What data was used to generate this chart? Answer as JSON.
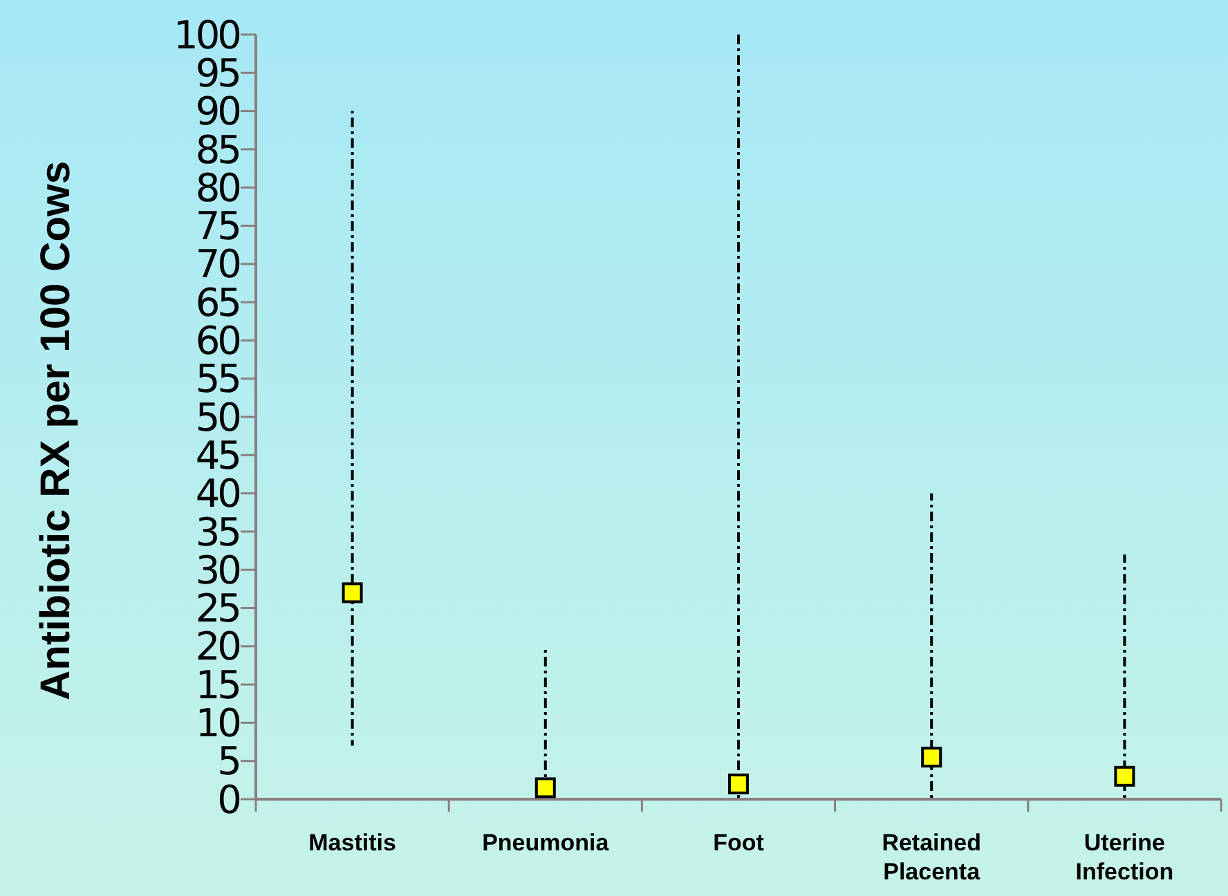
{
  "chart_data": {
    "type": "scatter",
    "ylabel": "Antibiotic RX per 100 Cows",
    "categories": [
      "Mastitis",
      "Pneumonia",
      "Foot",
      "Retained Placenta",
      "Uterine Infection"
    ],
    "series": [
      {
        "color": "#ffff00",
        "values": [
          27,
          1.5,
          2,
          5.5,
          3
        ],
        "errors": [
          [
            7,
            90
          ],
          [
            0,
            20
          ],
          [
            0,
            100
          ],
          [
            0,
            40
          ],
          [
            0,
            32
          ]
        ]
      }
    ],
    "marker": "square",
    "ylim": [
      0,
      100
    ],
    "yticks": [
      0,
      5,
      10,
      15,
      20,
      25,
      30,
      35,
      40,
      45,
      50,
      55,
      60,
      65,
      70,
      75,
      80,
      85,
      90,
      95,
      100
    ]
  }
}
